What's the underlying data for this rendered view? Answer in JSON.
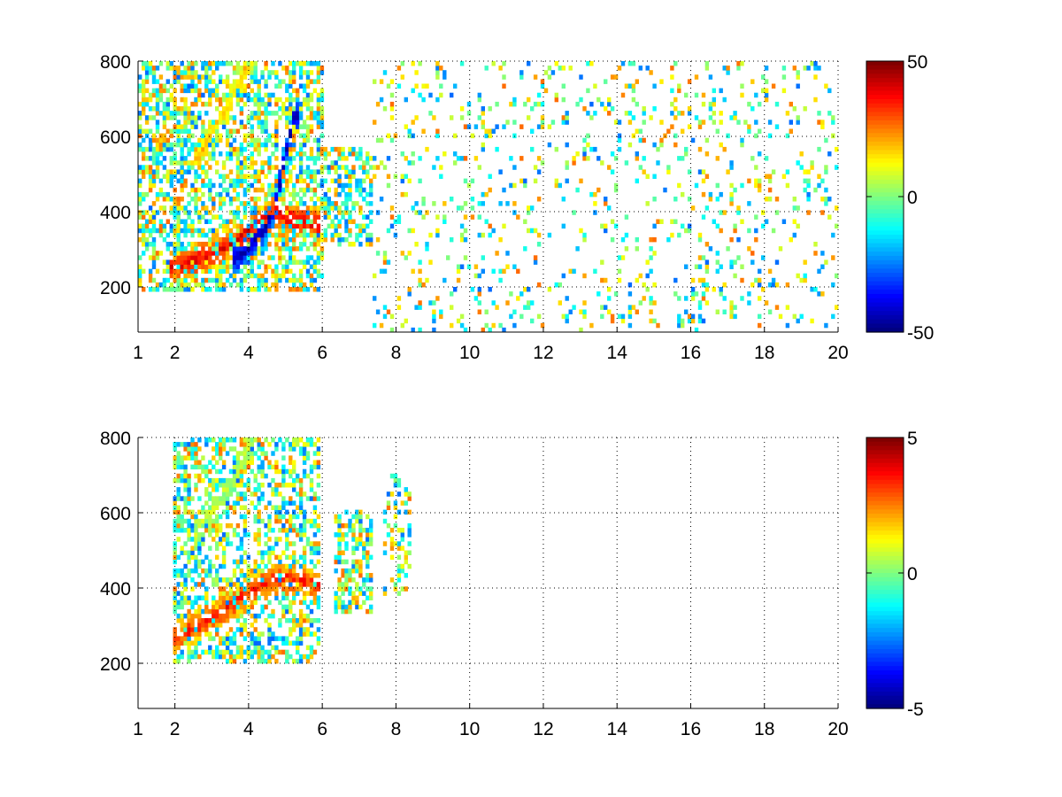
{
  "chart_data": [
    {
      "type": "heatmap",
      "title": "",
      "xlabel": "",
      "ylabel": "",
      "xlim": [
        1,
        20
      ],
      "ylim": [
        80,
        800
      ],
      "xticks": [
        1,
        2,
        4,
        6,
        8,
        10,
        12,
        14,
        16,
        18,
        20
      ],
      "yticks": [
        200,
        400,
        600,
        800
      ],
      "grid": true,
      "colorbar": {
        "min": -50,
        "max": 50,
        "ticks": [
          50,
          0,
          -50
        ],
        "colormap": "jet"
      },
      "features": [
        {
          "name": "lower-ridge",
          "x": [
            1.9,
            2.5,
            3.0,
            3.5,
            3.9,
            4.3,
            4.7,
            5.2,
            5.8
          ],
          "y": [
            250,
            265,
            285,
            310,
            340,
            370,
            390,
            375,
            360
          ],
          "value": 40
        },
        {
          "name": "upper-ridge",
          "x": [
            2.6,
            3.0,
            3.4,
            3.8,
            4.0
          ],
          "y": [
            550,
            610,
            680,
            760,
            800
          ],
          "value": 18
        },
        {
          "name": "blue-band",
          "x": [
            3.6,
            4.0,
            4.4,
            4.7,
            4.9,
            5.2
          ],
          "y": [
            270,
            300,
            350,
            420,
            520,
            650
          ],
          "value": -45
        }
      ],
      "regions": [
        {
          "x": [
            1,
            6
          ],
          "y": [
            180,
            800
          ],
          "density": 0.55
        },
        {
          "x": [
            6,
            7.3
          ],
          "y": [
            300,
            560
          ],
          "density": 0.5
        },
        {
          "x": [
            7.3,
            20
          ],
          "y": [
            80,
            800
          ],
          "density": 0.12
        }
      ]
    },
    {
      "type": "heatmap",
      "title": "",
      "xlabel": "",
      "ylabel": "",
      "xlim": [
        1,
        20
      ],
      "ylim": [
        80,
        800
      ],
      "xticks": [
        1,
        2,
        4,
        6,
        8,
        10,
        12,
        14,
        16,
        18,
        20
      ],
      "yticks": [
        200,
        400,
        600,
        800
      ],
      "grid": true,
      "colorbar": {
        "min": -5,
        "max": 5,
        "ticks": [
          5,
          0,
          -5
        ],
        "colormap": "jet"
      },
      "features": [
        {
          "name": "lower-ridge",
          "x": [
            2.0,
            2.5,
            3.0,
            3.5,
            4.0,
            4.5,
            5.0,
            5.5,
            5.8
          ],
          "y": [
            260,
            290,
            320,
            350,
            390,
            410,
            420,
            410,
            400
          ],
          "value": 3.5
        },
        {
          "name": "upper-ridge",
          "x": [
            2.6,
            3.0,
            3.4,
            3.8,
            4.1
          ],
          "y": [
            550,
            600,
            660,
            740,
            800
          ],
          "value": 0.5
        }
      ],
      "regions": [
        {
          "x": [
            1.9,
            5.9
          ],
          "y": [
            200,
            800
          ],
          "density": 0.5
        },
        {
          "x": [
            6.3,
            7.3
          ],
          "y": [
            330,
            600
          ],
          "density": 0.55
        },
        {
          "x": [
            7.6,
            8.4
          ],
          "y": [
            370,
            700
          ],
          "density": 0.3
        }
      ]
    }
  ]
}
